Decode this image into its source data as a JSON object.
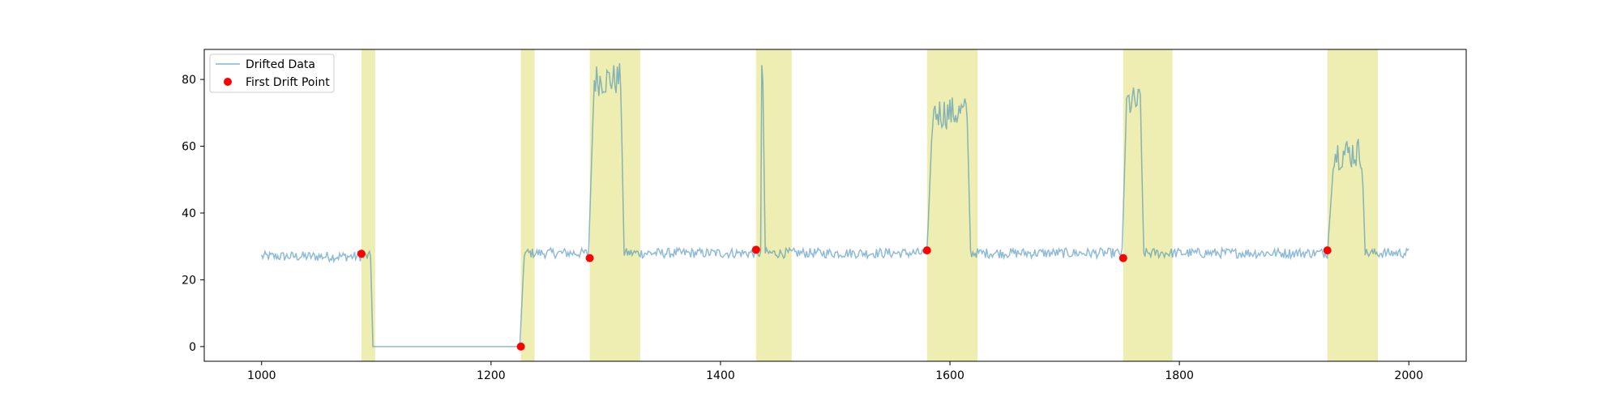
{
  "chart_data": {
    "type": "line",
    "title": "",
    "xlabel": "",
    "ylabel": "",
    "xlim": [
      950,
      2050
    ],
    "ylim": [
      -4.4,
      89
    ],
    "x_ticks": [
      1000,
      1200,
      1400,
      1600,
      1800,
      2000
    ],
    "y_ticks": [
      0,
      20,
      40,
      60,
      80
    ],
    "legend": {
      "position": "top-left",
      "entries": [
        {
          "label": "Drifted Data",
          "kind": "line",
          "color": "#1f77b4"
        },
        {
          "label": "First Drift Point",
          "kind": "marker",
          "color": "#ff0000"
        }
      ]
    },
    "colors": {
      "line": "#1f77b4",
      "drift_point": "#ff0000",
      "drift_region": "#e8e89a"
    },
    "series": [
      {
        "name": "Drifted Data",
        "x_start": 1000,
        "x_end": 2000,
        "baseline_level": 27.5,
        "noise_amplitude": 1.5,
        "segments": [
          {
            "start": 1000,
            "end": 1095,
            "level": 27
          },
          {
            "start": 1097,
            "end": 1225,
            "level": 0
          },
          {
            "start": 1229,
            "end": 1285,
            "level": 28
          },
          {
            "start": 1290,
            "end": 1313,
            "level": 80
          },
          {
            "start": 1316,
            "end": 1435,
            "level": 28
          },
          {
            "start": 1436,
            "end": 1437,
            "level": 80
          },
          {
            "start": 1439,
            "end": 1580,
            "level": 28
          },
          {
            "start": 1585,
            "end": 1615,
            "level": 70
          },
          {
            "start": 1618,
            "end": 1750,
            "level": 28
          },
          {
            "start": 1754,
            "end": 1766,
            "level": 73
          },
          {
            "start": 1769,
            "end": 1929,
            "level": 28
          },
          {
            "start": 1935,
            "end": 1959,
            "level": 58
          },
          {
            "start": 1962,
            "end": 2000,
            "level": 28
          }
        ]
      }
    ],
    "drift_regions": [
      {
        "start": 1087,
        "end": 1099
      },
      {
        "start": 1226,
        "end": 1238
      },
      {
        "start": 1286,
        "end": 1330
      },
      {
        "start": 1431,
        "end": 1462
      },
      {
        "start": 1580,
        "end": 1624
      },
      {
        "start": 1751,
        "end": 1794
      },
      {
        "start": 1929,
        "end": 1973
      }
    ],
    "drift_points": [
      {
        "x": 1087,
        "y": 27.8
      },
      {
        "x": 1226,
        "y": 0
      },
      {
        "x": 1286,
        "y": 26.5
      },
      {
        "x": 1431,
        "y": 29
      },
      {
        "x": 1580,
        "y": 28.8
      },
      {
        "x": 1751,
        "y": 26.5
      },
      {
        "x": 1929,
        "y": 28.8
      }
    ]
  }
}
